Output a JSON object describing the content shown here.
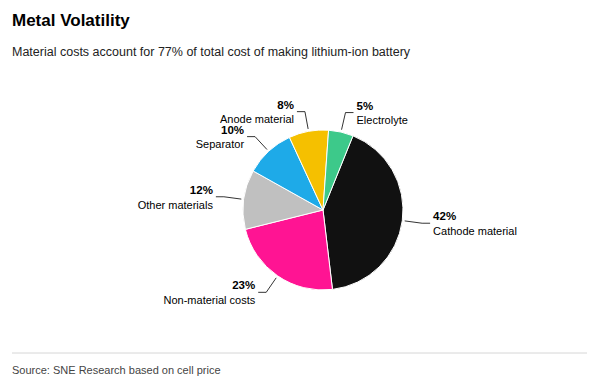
{
  "chart_data": {
    "type": "pie",
    "title": "Metal Volatility",
    "subtitle": "Material costs account for 77% of total cost of making lithium-ion battery",
    "source": "Source: SNE Research based on cell price",
    "categories": [
      "Cathode material",
      "Non-material costs",
      "Other materials",
      "Separator",
      "Anode material",
      "Electrolyte"
    ],
    "values": [
      42,
      23,
      12,
      10,
      8,
      5
    ],
    "value_labels": [
      "42%",
      "23%",
      "12%",
      "10%",
      "8%",
      "5%"
    ],
    "data_labels": true,
    "colors": [
      "#111111",
      "#FF1493",
      "#C0C0C0",
      "#1EAAE8",
      "#F5C000",
      "#3DC98A"
    ]
  }
}
